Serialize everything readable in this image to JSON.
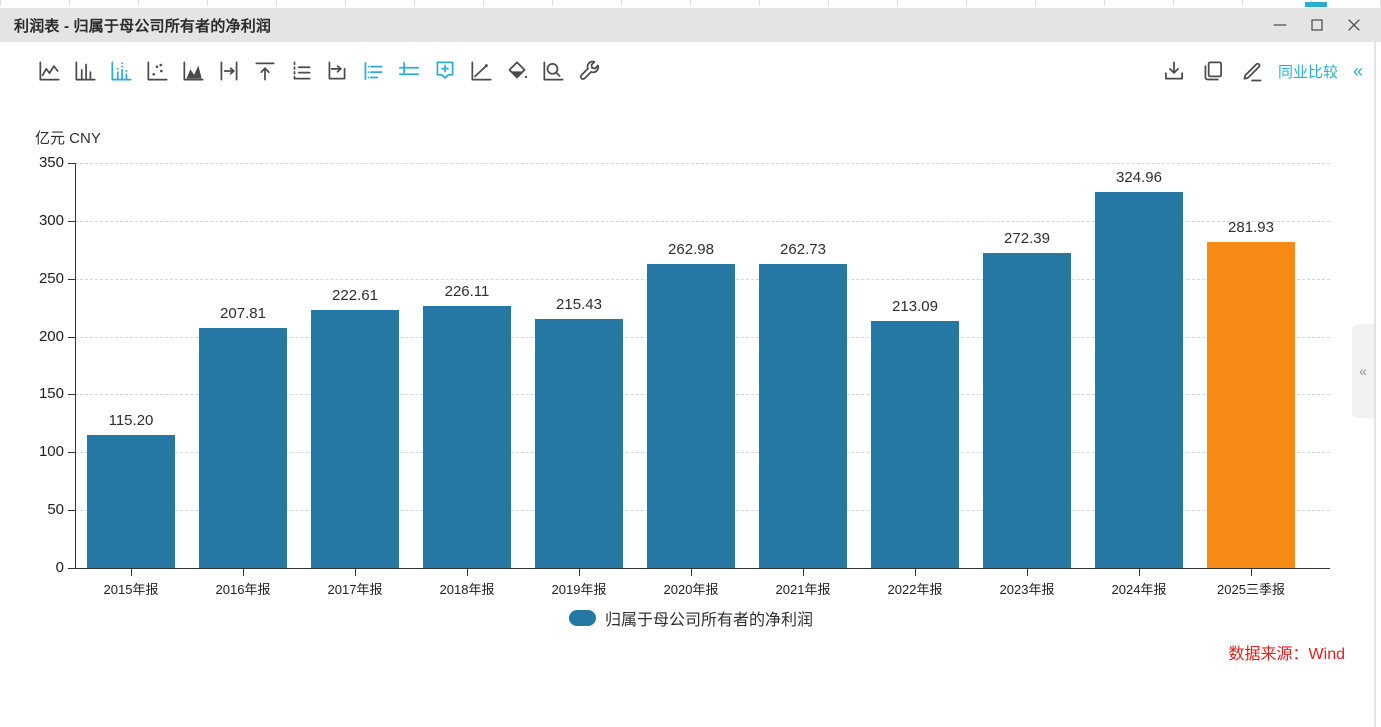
{
  "window": {
    "title": "利润表 - 归属于母公司所有者的净利润",
    "controls": {
      "minimize": "minimize",
      "maximize": "maximize",
      "close": "close"
    }
  },
  "toolbar": {
    "chart_type_icons": [
      {
        "name": "line-chart-icon",
        "active": false
      },
      {
        "name": "bar-chart-icon",
        "active": false
      },
      {
        "name": "dotted-bar-chart-icon",
        "active": true
      },
      {
        "name": "scatter-chart-icon",
        "active": false
      },
      {
        "name": "area-chart-icon",
        "active": false
      },
      {
        "name": "bar-width-icon",
        "active": false
      },
      {
        "name": "align-top-icon",
        "active": false
      },
      {
        "name": "axis-style-icon",
        "active": false
      },
      {
        "name": "shift-axis-icon",
        "active": false
      },
      {
        "name": "data-label-list-icon",
        "active": true
      },
      {
        "name": "legend-toggle-icon",
        "active": true
      },
      {
        "name": "add-box-icon",
        "active": true
      },
      {
        "name": "trend-line-icon",
        "active": false
      },
      {
        "name": "fill-color-icon",
        "active": false
      },
      {
        "name": "zoom-chart-icon",
        "active": false
      },
      {
        "name": "settings-wrench-icon",
        "active": false
      }
    ],
    "right_icons": [
      {
        "name": "download-icon"
      },
      {
        "name": "copy-icon"
      },
      {
        "name": "edit-chart-icon"
      }
    ],
    "peer_link_label": "同业比较",
    "collapse_glyph": "«"
  },
  "chart_data": {
    "type": "bar",
    "title": "归属于母公司所有者的净利润",
    "unit_label": "亿元 CNY",
    "categories": [
      "2015年报",
      "2016年报",
      "2017年报",
      "2018年报",
      "2019年报",
      "2020年报",
      "2021年报",
      "2022年报",
      "2023年报",
      "2024年报",
      "2025三季报"
    ],
    "values": [
      115.2,
      207.81,
      222.61,
      226.11,
      215.43,
      262.98,
      262.73,
      213.09,
      272.39,
      324.96,
      281.93
    ],
    "value_labels": [
      "115.20",
      "207.81",
      "222.61",
      "226.11",
      "215.43",
      "262.98",
      "262.73",
      "213.09",
      "272.39",
      "324.96",
      "281.93"
    ],
    "ylim": [
      0,
      350
    ],
    "ytick_step": 50,
    "grid": "horizontal-dashed",
    "legend_label": "归属于母公司所有者的净利润",
    "legend_position": "bottom-center",
    "bar_color": "#2577A4",
    "highlight_index": 10,
    "highlight_color": "#F58A14",
    "source_label": "数据来源：Wind",
    "source_color": "#E01E1E"
  },
  "side_tab": {
    "glyph": "«"
  },
  "colors": {
    "accent_teal": "#2BAECE",
    "icon_dark": "#4A4A4A",
    "titlebar_bg": "#E4E4E4"
  }
}
